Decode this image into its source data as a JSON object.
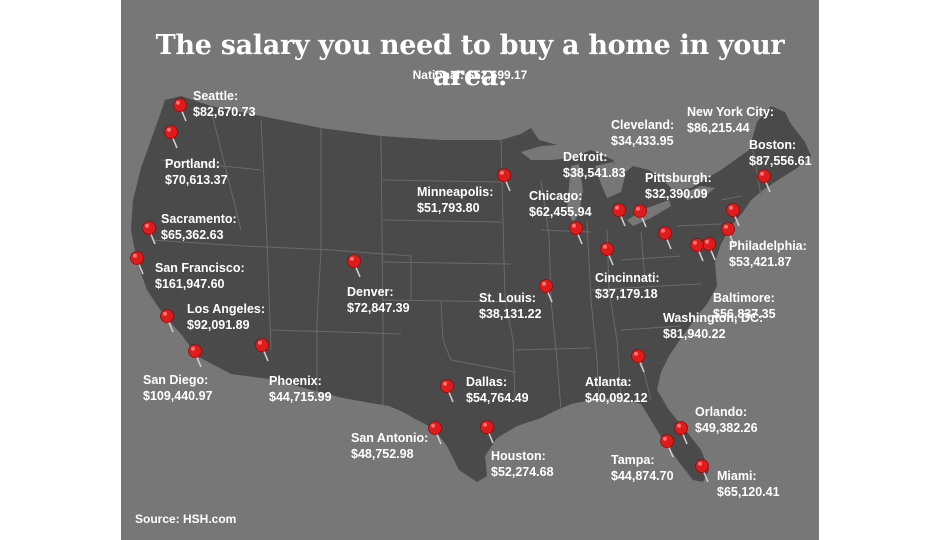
{
  "title": "The salary you need to buy a home in your area.",
  "subtitle": "National: $52,699.17",
  "source": "Source: HSH.com",
  "colors": {
    "background": "#777777",
    "land": "#4a4a4a",
    "borders": "#6a6a6a",
    "pin": "#e01b1b",
    "text": "#ffffff"
  },
  "cities": [
    {
      "name": "Seattle:",
      "salary": "$82,670.73"
    },
    {
      "name": "Portland:",
      "salary": "$70,613.37"
    },
    {
      "name": "Sacramento:",
      "salary": "$65,362.63"
    },
    {
      "name": "San Francisco:",
      "salary": "$161,947.60"
    },
    {
      "name": "Los Angeles:",
      "salary": "$92,091.89"
    },
    {
      "name": "San Diego:",
      "salary": "$109,440.97"
    },
    {
      "name": "Phoenix:",
      "salary": "$44,715.99"
    },
    {
      "name": "Denver:",
      "salary": "$72,847.39"
    },
    {
      "name": "Minneapolis:",
      "salary": "$51,793.80"
    },
    {
      "name": "Chicago:",
      "salary": "$62,455.94"
    },
    {
      "name": "Detroit:",
      "salary": "$38,541.83"
    },
    {
      "name": "Cleveland:",
      "salary": "$34,433.95"
    },
    {
      "name": "Pittsburgh:",
      "salary": "$32,390.09"
    },
    {
      "name": "New York City:",
      "salary": "$86,215.44"
    },
    {
      "name": "Boston:",
      "salary": "$87,556.61"
    },
    {
      "name": "Philadelphia:",
      "salary": "$53,421.87"
    },
    {
      "name": "Baltimore:",
      "salary": "$56,837.35"
    },
    {
      "name": "Washington, DC:",
      "salary": "$81,940.22"
    },
    {
      "name": "Cincinnati:",
      "salary": "$37,179.18"
    },
    {
      "name": "St. Louis:",
      "salary": "$38,131.22"
    },
    {
      "name": "Dallas:",
      "salary": "$54,764.49"
    },
    {
      "name": "San Antonio:",
      "salary": "$48,752.98"
    },
    {
      "name": "Houston:",
      "salary": "$52,274.68"
    },
    {
      "name": "Atlanta:",
      "salary": "$40,092.12"
    },
    {
      "name": "Orlando:",
      "salary": "$49,382.26"
    },
    {
      "name": "Tampa:",
      "salary": "$44,874.70"
    },
    {
      "name": "Miami:",
      "salary": "$65,120.41"
    }
  ]
}
